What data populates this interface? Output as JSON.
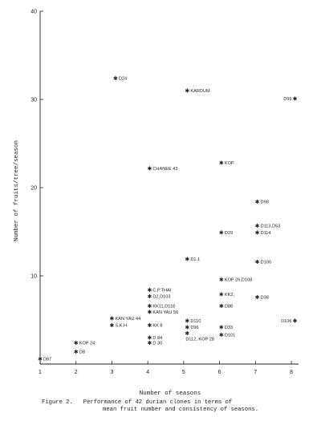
{
  "chart_data": {
    "type": "scatter",
    "xlabel": "Number of seasons",
    "ylabel": "Number of fruits/tree/season",
    "xlim": [
      1,
      8.2
    ],
    "ylim": [
      0,
      40
    ],
    "xticks": [
      "1",
      "2",
      "3",
      "4",
      "5",
      "6",
      "7",
      "8"
    ],
    "yticks": [
      "10",
      "20",
      "30",
      "40"
    ],
    "grid": false,
    "points": [
      {
        "label": "D24",
        "x": 3.1,
        "y": 32.4,
        "side": "right"
      },
      {
        "label": "KARDUM",
        "x": 5.1,
        "y": 31.0,
        "side": "right"
      },
      {
        "label": "D99",
        "x": 8.1,
        "y": 30.1,
        "side": "left"
      },
      {
        "label": "CHANEE 43",
        "x": 4.05,
        "y": 22.2,
        "side": "right"
      },
      {
        "label": "KOP",
        "x": 6.05,
        "y": 22.8,
        "side": "right"
      },
      {
        "label": "D98",
        "x": 7.05,
        "y": 18.4,
        "side": "right"
      },
      {
        "label": "D113,D53",
        "x": 7.05,
        "y": 15.7,
        "side": "right"
      },
      {
        "label": "D114",
        "x": 7.05,
        "y": 14.9,
        "side": "right"
      },
      {
        "label": "D29",
        "x": 6.05,
        "y": 14.9,
        "side": "right"
      },
      {
        "label": "D1.1",
        "x": 5.1,
        "y": 11.9,
        "side": "right"
      },
      {
        "label": "D100",
        "x": 7.05,
        "y": 11.6,
        "side": "right"
      },
      {
        "label": "KOP 26,D108",
        "x": 6.05,
        "y": 9.6,
        "side": "right"
      },
      {
        "label": "C.P.THAI",
        "x": 4.05,
        "y": 8.4,
        "side": "right"
      },
      {
        "label": "D2,D103",
        "x": 4.05,
        "y": 7.7,
        "side": "right"
      },
      {
        "label": "KK2,",
        "x": 6.05,
        "y": 7.9,
        "side": "right"
      },
      {
        "label": "D38",
        "x": 7.05,
        "y": 7.6,
        "side": "right"
      },
      {
        "label": "KK11,D118",
        "x": 4.05,
        "y": 6.6,
        "side": "right"
      },
      {
        "label": "D88",
        "x": 6.05,
        "y": 6.6,
        "side": "right"
      },
      {
        "label": "KAN YAU 56",
        "x": 4.05,
        "y": 5.9,
        "side": "right"
      },
      {
        "label": "KAN YAU 44",
        "x": 3.0,
        "y": 5.2,
        "side": "right"
      },
      {
        "label": "S.K.H",
        "x": 3.0,
        "y": 4.4,
        "side": "right"
      },
      {
        "label": "KK 8",
        "x": 4.05,
        "y": 4.4,
        "side": "right"
      },
      {
        "label": "D110",
        "x": 5.1,
        "y": 4.9,
        "side": "right"
      },
      {
        "label": "D96",
        "x": 5.1,
        "y": 4.2,
        "side": "right"
      },
      {
        "label": "D33",
        "x": 6.05,
        "y": 4.2,
        "side": "right"
      },
      {
        "label": "D106",
        "x": 8.1,
        "y": 4.9,
        "side": "left"
      },
      {
        "label": "D112, KOP 28",
        "x": 5.1,
        "y": 3.5,
        "side": "below"
      },
      {
        "label": "D101",
        "x": 6.05,
        "y": 3.3,
        "side": "right"
      },
      {
        "label": "D 84",
        "x": 4.05,
        "y": 3.0,
        "side": "right"
      },
      {
        "label": "D 30",
        "x": 4.05,
        "y": 2.4,
        "side": "right"
      },
      {
        "label": "KOP 24",
        "x": 2.0,
        "y": 2.4,
        "side": "right"
      },
      {
        "label": "D8",
        "x": 2.0,
        "y": 1.4,
        "side": "right"
      },
      {
        "label": "D87",
        "x": 1.0,
        "y": 0.6,
        "side": "right"
      }
    ]
  },
  "caption": {
    "line1": "Figure 2.   Performance of 42 durian clones in terms of",
    "line2": "mean fruit number and consistency of seasons."
  }
}
